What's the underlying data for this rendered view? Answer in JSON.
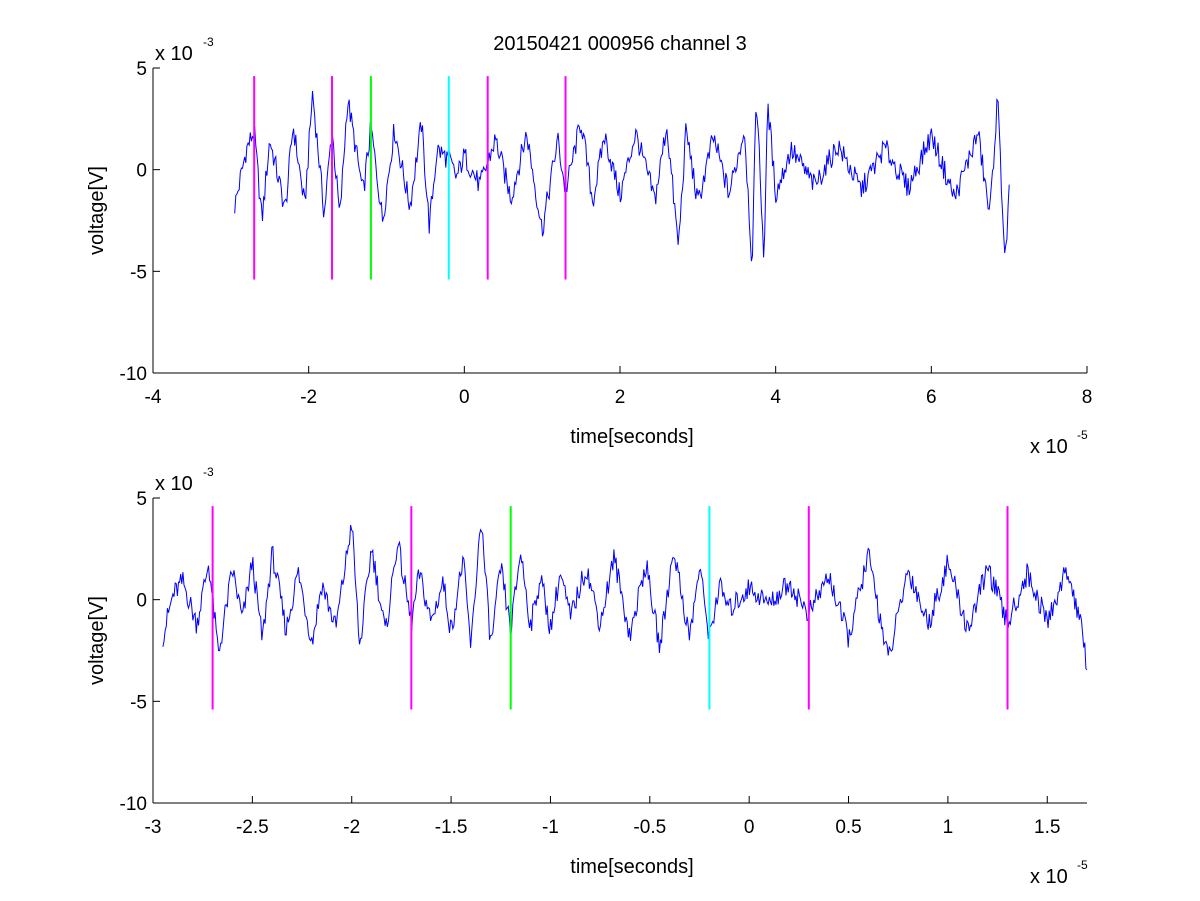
{
  "figure": {
    "title": "20150421 000956 channel 3",
    "background": "#ffffff"
  },
  "colors": {
    "signal": "#0000ff",
    "magenta": "#ff00ff",
    "green": "#00ff00",
    "cyan": "#00ffff",
    "axis": "#000000"
  },
  "chart_data": [
    {
      "type": "line",
      "title": "20150421 000956 channel 3",
      "xlabel": "time[seconds]",
      "ylabel": "voltage[V]",
      "x_exponent_label": "x 10",
      "x_exponent": "-5",
      "y_exponent_label": "x 10",
      "y_exponent": "-3",
      "xlim": [
        -4,
        8
      ],
      "ylim": [
        -10,
        5
      ],
      "xticks": [
        -4,
        -2,
        0,
        2,
        4,
        6,
        8
      ],
      "xtick_labels": [
        "-4",
        "-2",
        "0",
        "2",
        "4",
        "6",
        "8"
      ],
      "yticks": [
        -10,
        -5,
        0,
        5
      ],
      "ytick_labels": [
        "-10",
        "-5",
        "0",
        "5"
      ],
      "grid": false,
      "signal_range": [
        -2.95,
        7.0
      ],
      "signal_envelope_mV": [
        -5,
        4
      ],
      "series": [
        {
          "color": "signal",
          "x": [
            -2.95,
            -2.8,
            -2.7,
            -2.6,
            -2.5,
            -2.3,
            -2.2,
            -2.05,
            -1.95,
            -1.8,
            -1.7,
            -1.6,
            -1.5,
            -1.3,
            -1.2,
            -1.05,
            -0.9,
            -0.7,
            -0.55,
            -0.45,
            -0.35,
            -0.2,
            -0.1,
            0.0,
            0.2,
            0.4,
            0.6,
            0.8,
            1.0,
            1.2,
            1.3,
            1.5,
            1.65,
            1.8,
            2.0,
            2.2,
            2.45,
            2.6,
            2.75,
            2.85,
            3.0,
            3.2,
            3.4,
            3.6,
            3.7,
            3.75,
            3.85,
            3.9,
            4.0,
            4.2,
            4.5,
            4.8,
            5.1,
            5.4,
            5.7,
            6.0,
            6.3,
            6.6,
            6.75,
            6.85,
            6.95,
            7.0
          ],
          "y": [
            -1.8,
            1.0,
            1.9,
            -2.5,
            1.5,
            -2.0,
            2.2,
            -1.8,
            3.8,
            -2.2,
            2.0,
            -2.4,
            3.5,
            -1.2,
            2.1,
            -2.5,
            2.0,
            -1.8,
            2.3,
            -2.8,
            1.0,
            0.5,
            -0.4,
            0.7,
            -0.8,
            1.5,
            -1.4,
            1.8,
            -3.0,
            1.5,
            -1.1,
            2.4,
            -1.6,
            1.7,
            -1.3,
            1.8,
            -1.5,
            2.2,
            -3.8,
            2.0,
            -1.7,
            1.6,
            -1.2,
            2.0,
            -4.9,
            3.9,
            -4.4,
            3.2,
            -1.2,
            1.0,
            -0.8,
            1.2,
            -1.0,
            1.1,
            -0.9,
            1.7,
            -1.4,
            1.8,
            -2.3,
            3.5,
            -4.7,
            -1.0
          ]
        }
      ],
      "markers": [
        {
          "x": -2.7,
          "color": "magenta"
        },
        {
          "x": -1.7,
          "color": "magenta"
        },
        {
          "x": -1.2,
          "color": "green"
        },
        {
          "x": -0.2,
          "color": "cyan"
        },
        {
          "x": 0.3,
          "color": "magenta"
        },
        {
          "x": 1.3,
          "color": "magenta"
        }
      ],
      "marker_range": [
        -5.4,
        4.6
      ]
    },
    {
      "type": "line",
      "title": "",
      "xlabel": "time[seconds]",
      "ylabel": "voltage[V]",
      "x_exponent_label": "x 10",
      "x_exponent": "-5",
      "y_exponent_label": "x 10",
      "y_exponent": "-3",
      "xlim": [
        -3.0,
        1.7
      ],
      "ylim": [
        -10,
        5
      ],
      "xticks": [
        -3,
        -2.5,
        -2,
        -1.5,
        -1,
        -0.5,
        0,
        0.5,
        1,
        1.5
      ],
      "xtick_labels": [
        "-3",
        "-2.5",
        "-2",
        "-1.5",
        "-1",
        "-0.5",
        "0",
        "0.5",
        "1",
        "1.5"
      ],
      "yticks": [
        -10,
        -5,
        0,
        5
      ],
      "ytick_labels": [
        "-10",
        "-5",
        "0",
        "5"
      ],
      "grid": false,
      "signal_range": [
        -2.95,
        1.7
      ],
      "signal_envelope_mV": [
        -3.2,
        4.1
      ],
      "series": [
        {
          "color": "signal",
          "x": [
            -2.95,
            -2.9,
            -2.85,
            -2.78,
            -2.72,
            -2.67,
            -2.6,
            -2.55,
            -2.5,
            -2.45,
            -2.4,
            -2.33,
            -2.27,
            -2.2,
            -2.15,
            -2.08,
            -2.0,
            -1.96,
            -1.9,
            -1.83,
            -1.77,
            -1.7,
            -1.66,
            -1.6,
            -1.54,
            -1.5,
            -1.44,
            -1.4,
            -1.35,
            -1.3,
            -1.25,
            -1.2,
            -1.15,
            -1.1,
            -1.05,
            -1.0,
            -0.95,
            -0.9,
            -0.82,
            -0.75,
            -0.68,
            -0.6,
            -0.52,
            -0.45,
            -0.38,
            -0.3,
            -0.25,
            -0.2,
            -0.15,
            -0.1,
            0.0,
            0.1,
            0.2,
            0.3,
            0.4,
            0.5,
            0.6,
            0.7,
            0.8,
            0.9,
            1.0,
            1.1,
            1.2,
            1.3,
            1.4,
            1.5,
            1.6,
            1.66,
            1.7
          ],
          "y": [
            -1.8,
            0.2,
            0.9,
            -1.2,
            1.8,
            -2.7,
            1.5,
            -1.0,
            1.9,
            -2.0,
            2.3,
            -1.5,
            1.4,
            -2.1,
            0.8,
            -1.4,
            3.8,
            -2.4,
            2.6,
            -1.7,
            2.9,
            -1.2,
            1.3,
            -1.1,
            0.9,
            -1.6,
            2.0,
            -2.4,
            4.1,
            -2.3,
            1.6,
            -1.5,
            2.4,
            -1.3,
            1.1,
            -1.4,
            1.3,
            -0.9,
            1.6,
            -1.2,
            2.1,
            -1.8,
            1.8,
            -2.4,
            2.5,
            -1.9,
            1.6,
            -1.8,
            0.7,
            -0.5,
            0.6,
            -0.2,
            0.8,
            -0.7,
            1.2,
            -1.9,
            2.2,
            -3.0,
            1.5,
            -1.2,
            1.8,
            -1.5,
            1.6,
            -1.2,
            1.3,
            -1.1,
            1.5,
            -0.8,
            -3.2
          ]
        }
      ],
      "markers": [
        {
          "x": -2.7,
          "color": "magenta"
        },
        {
          "x": -1.7,
          "color": "magenta"
        },
        {
          "x": -1.2,
          "color": "green"
        },
        {
          "x": -0.2,
          "color": "cyan"
        },
        {
          "x": 0.3,
          "color": "magenta"
        },
        {
          "x": 1.3,
          "color": "magenta"
        }
      ],
      "marker_range": [
        -5.4,
        4.6
      ]
    }
  ]
}
